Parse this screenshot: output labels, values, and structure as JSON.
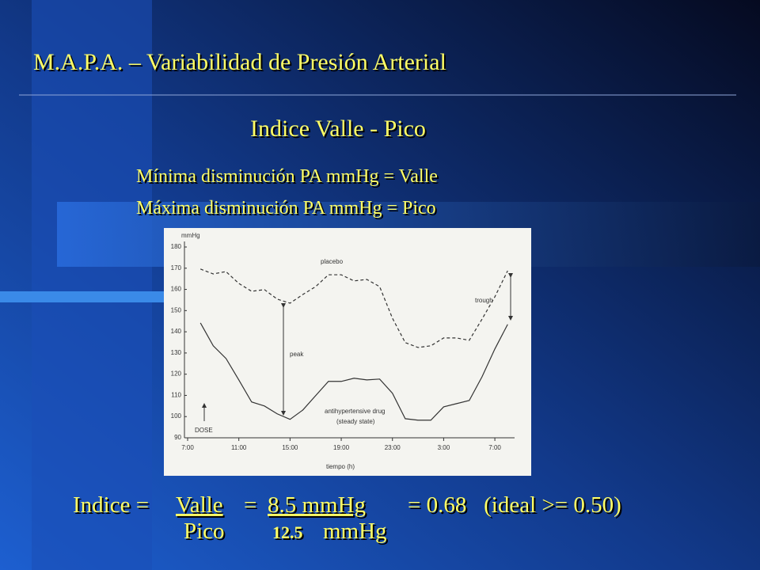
{
  "slide": {
    "title": "M.A.P.A. – Variabilidad de Presión Arterial",
    "subtitle": "Indice Valle - Pico",
    "definitions": [
      "Mínima disminución PA mmHg = Valle",
      "Máxima disminución PA mmHg = Pico"
    ],
    "formula": {
      "lead": "Indice =",
      "numerator": "Valle",
      "equals": "=",
      "numerator_value": "8.5 mmHg",
      "result": "= 0.68   (ideal >= 0.50)",
      "denominator": "Pico",
      "denominator_value": "12.5",
      "denominator_unit": "mmHg"
    }
  },
  "chart_data": {
    "type": "line",
    "y_label": "mmHg",
    "x_label": "tiempo (h)",
    "annotations": [
      "placebo",
      "trough",
      "peak",
      "antihypertensive drug",
      "(steady state)",
      "DOSE"
    ],
    "x": [
      1,
      2,
      3,
      4,
      5,
      6,
      7,
      8,
      9,
      10,
      11,
      12,
      13,
      14,
      15,
      16,
      17,
      18,
      19,
      20,
      21,
      22,
      23,
      24,
      25
    ],
    "xlim": [
      0,
      26
    ],
    "xticks": [
      {
        "value": 0,
        "label": "7:00"
      },
      {
        "value": 4,
        "label": "11:00"
      },
      {
        "value": 8,
        "label": "15:00"
      },
      {
        "value": 12,
        "label": "19:00"
      },
      {
        "value": 16,
        "label": "23:00"
      },
      {
        "value": 20,
        "label": "3:00"
      },
      {
        "value": 24,
        "label": "7:00"
      }
    ],
    "ylim": [
      90,
      180
    ],
    "yticks": [
      90,
      100,
      110,
      120,
      130,
      140,
      150,
      160,
      170,
      180
    ],
    "series": [
      {
        "name": "placebo",
        "color": "#333333",
        "dashed": true,
        "values": [
          169.6,
          167.3,
          168.4,
          162.8,
          159.1,
          159.9,
          155.4,
          153.5,
          157.6,
          161.3,
          166.9,
          166.9,
          164,
          164.7,
          161.3,
          146.4,
          134.9,
          132.6,
          133.4,
          137.1,
          137.1,
          136,
          146,
          156.5,
          168.8
        ]
      },
      {
        "name": "antihypertensive drug",
        "color": "#333333",
        "dashed": false,
        "values": [
          144.2,
          133.4,
          127.4,
          117.3,
          106.9,
          105,
          101.3,
          98.7,
          103.1,
          109.9,
          116.6,
          116.6,
          118.1,
          117.3,
          117.7,
          111,
          99,
          98.3,
          98.3,
          104.6,
          106.1,
          107.6,
          118.8,
          131.9,
          143.5
        ]
      }
    ]
  }
}
